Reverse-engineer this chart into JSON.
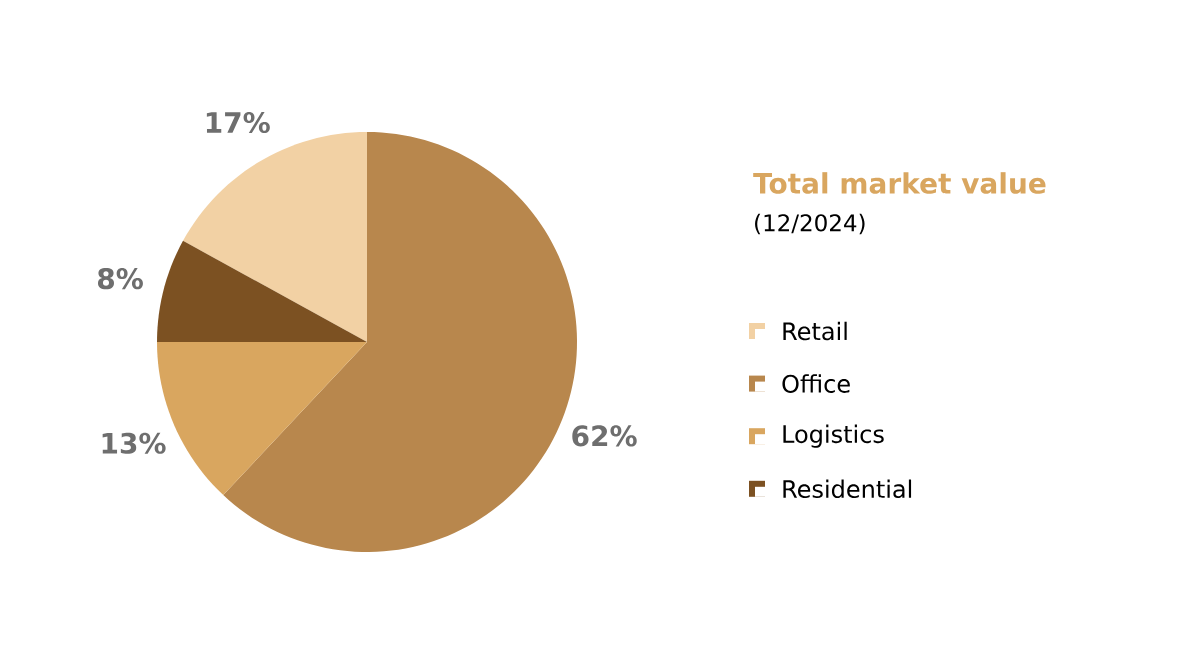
{
  "chart_data": {
    "type": "pie",
    "title": "Total market value",
    "subtitle": "(12/2024)",
    "categories": [
      "Retail",
      "Office",
      "Logistics",
      "Residential"
    ],
    "values": [
      17,
      62,
      13,
      8
    ],
    "value_labels": [
      "17%",
      "62%",
      "13%",
      "8%"
    ],
    "colors": [
      "#f2d1a4",
      "#b8874d",
      "#d9a65f",
      "#7c5122"
    ],
    "legend": "right"
  }
}
